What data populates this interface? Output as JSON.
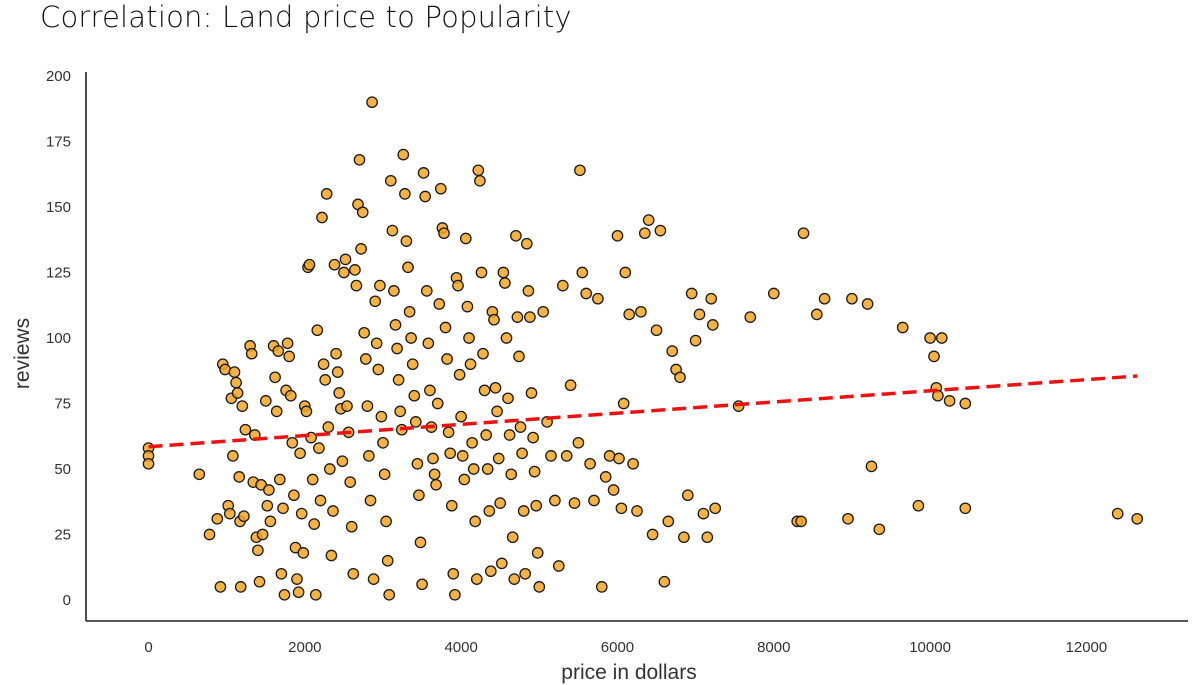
{
  "chart_data": {
    "type": "scatter",
    "title": "Correlation: Land price to Popularity",
    "xlabel": "price in dollars",
    "ylabel": "reviews",
    "xlim": [
      -800,
      13300
    ],
    "ylim": [
      -8,
      200
    ],
    "xticks": [
      0,
      2000,
      4000,
      6000,
      8000,
      10000,
      12000
    ],
    "yticks": [
      0,
      25,
      50,
      75,
      100,
      125,
      150,
      175,
      200
    ],
    "grid": false,
    "point_color": "#f5a623",
    "point_edge_color": "#1a1a1a",
    "trend_color": "#ee1111",
    "trend_line": {
      "style": "dashed",
      "x": [
        0,
        12650
      ],
      "y": [
        58.5,
        85.5
      ]
    },
    "points": [
      [
        0,
        58
      ],
      [
        0,
        55
      ],
      [
        0,
        52
      ],
      [
        650,
        48
      ],
      [
        780,
        25
      ],
      [
        880,
        31
      ],
      [
        920,
        5
      ],
      [
        950,
        90
      ],
      [
        980,
        88
      ],
      [
        1020,
        36
      ],
      [
        1040,
        33
      ],
      [
        1060,
        77
      ],
      [
        1080,
        55
      ],
      [
        1100,
        87
      ],
      [
        1120,
        83
      ],
      [
        1140,
        79
      ],
      [
        1160,
        47
      ],
      [
        1170,
        30
      ],
      [
        1180,
        5
      ],
      [
        1200,
        74
      ],
      [
        1220,
        32
      ],
      [
        1240,
        65
      ],
      [
        1300,
        97
      ],
      [
        1320,
        94
      ],
      [
        1340,
        45
      ],
      [
        1360,
        63
      ],
      [
        1380,
        24
      ],
      [
        1400,
        19
      ],
      [
        1420,
        7
      ],
      [
        1440,
        44
      ],
      [
        1460,
        25
      ],
      [
        1500,
        76
      ],
      [
        1520,
        36
      ],
      [
        1540,
        42
      ],
      [
        1560,
        30
      ],
      [
        1600,
        97
      ],
      [
        1620,
        85
      ],
      [
        1640,
        72
      ],
      [
        1660,
        95
      ],
      [
        1680,
        46
      ],
      [
        1700,
        10
      ],
      [
        1720,
        35
      ],
      [
        1740,
        2
      ],
      [
        1760,
        80
      ],
      [
        1780,
        98
      ],
      [
        1800,
        93
      ],
      [
        1820,
        78
      ],
      [
        1840,
        60
      ],
      [
        1860,
        40
      ],
      [
        1880,
        20
      ],
      [
        1900,
        8
      ],
      [
        1920,
        3
      ],
      [
        1940,
        56
      ],
      [
        1960,
        33
      ],
      [
        1980,
        18
      ],
      [
        2000,
        74
      ],
      [
        2020,
        72
      ],
      [
        2040,
        127
      ],
      [
        2060,
        128
      ],
      [
        2080,
        62
      ],
      [
        2100,
        46
      ],
      [
        2120,
        29
      ],
      [
        2140,
        2
      ],
      [
        2160,
        103
      ],
      [
        2180,
        58
      ],
      [
        2200,
        38
      ],
      [
        2220,
        146
      ],
      [
        2240,
        90
      ],
      [
        2260,
        84
      ],
      [
        2280,
        155
      ],
      [
        2300,
        66
      ],
      [
        2320,
        50
      ],
      [
        2340,
        17
      ],
      [
        2360,
        34
      ],
      [
        2380,
        128
      ],
      [
        2400,
        94
      ],
      [
        2420,
        87
      ],
      [
        2440,
        79
      ],
      [
        2460,
        73
      ],
      [
        2480,
        53
      ],
      [
        2500,
        125
      ],
      [
        2520,
        130
      ],
      [
        2540,
        74
      ],
      [
        2560,
        64
      ],
      [
        2580,
        45
      ],
      [
        2600,
        28
      ],
      [
        2620,
        10
      ],
      [
        2640,
        126
      ],
      [
        2660,
        120
      ],
      [
        2680,
        151
      ],
      [
        2700,
        168
      ],
      [
        2720,
        134
      ],
      [
        2740,
        148
      ],
      [
        2760,
        102
      ],
      [
        2780,
        92
      ],
      [
        2800,
        74
      ],
      [
        2820,
        55
      ],
      [
        2840,
        38
      ],
      [
        2860,
        190
      ],
      [
        2880,
        8
      ],
      [
        2900,
        114
      ],
      [
        2920,
        98
      ],
      [
        2940,
        88
      ],
      [
        2960,
        120
      ],
      [
        2980,
        70
      ],
      [
        3000,
        60
      ],
      [
        3020,
        48
      ],
      [
        3040,
        30
      ],
      [
        3060,
        15
      ],
      [
        3080,
        2
      ],
      [
        3100,
        160
      ],
      [
        3120,
        141
      ],
      [
        3140,
        118
      ],
      [
        3160,
        105
      ],
      [
        3180,
        96
      ],
      [
        3200,
        84
      ],
      [
        3220,
        72
      ],
      [
        3240,
        65
      ],
      [
        3260,
        170
      ],
      [
        3280,
        155
      ],
      [
        3300,
        137
      ],
      [
        3320,
        127
      ],
      [
        3340,
        110
      ],
      [
        3360,
        100
      ],
      [
        3380,
        90
      ],
      [
        3400,
        78
      ],
      [
        3420,
        68
      ],
      [
        3440,
        52
      ],
      [
        3460,
        40
      ],
      [
        3480,
        22
      ],
      [
        3500,
        6
      ],
      [
        3520,
        163
      ],
      [
        3540,
        154
      ],
      [
        3560,
        118
      ],
      [
        3580,
        98
      ],
      [
        3600,
        80
      ],
      [
        3620,
        66
      ],
      [
        3640,
        54
      ],
      [
        3660,
        48
      ],
      [
        3680,
        44
      ],
      [
        3700,
        75
      ],
      [
        3720,
        113
      ],
      [
        3740,
        157
      ],
      [
        3760,
        142
      ],
      [
        3780,
        140
      ],
      [
        3800,
        104
      ],
      [
        3820,
        92
      ],
      [
        3840,
        64
      ],
      [
        3860,
        56
      ],
      [
        3880,
        36
      ],
      [
        3900,
        10
      ],
      [
        3920,
        2
      ],
      [
        3940,
        123
      ],
      [
        3960,
        120
      ],
      [
        3980,
        86
      ],
      [
        4000,
        70
      ],
      [
        4020,
        55
      ],
      [
        4040,
        46
      ],
      [
        4060,
        138
      ],
      [
        4080,
        112
      ],
      [
        4100,
        100
      ],
      [
        4120,
        90
      ],
      [
        4140,
        60
      ],
      [
        4160,
        50
      ],
      [
        4180,
        30
      ],
      [
        4200,
        8
      ],
      [
        4220,
        164
      ],
      [
        4240,
        160
      ],
      [
        4260,
        125
      ],
      [
        4280,
        94
      ],
      [
        4300,
        80
      ],
      [
        4320,
        63
      ],
      [
        4340,
        50
      ],
      [
        4360,
        34
      ],
      [
        4380,
        11
      ],
      [
        4400,
        110
      ],
      [
        4420,
        107
      ],
      [
        4440,
        81
      ],
      [
        4460,
        72
      ],
      [
        4480,
        54
      ],
      [
        4500,
        37
      ],
      [
        4520,
        14
      ],
      [
        4540,
        125
      ],
      [
        4560,
        121
      ],
      [
        4580,
        100
      ],
      [
        4600,
        77
      ],
      [
        4620,
        63
      ],
      [
        4640,
        48
      ],
      [
        4660,
        24
      ],
      [
        4680,
        8
      ],
      [
        4700,
        139
      ],
      [
        4720,
        108
      ],
      [
        4740,
        93
      ],
      [
        4760,
        66
      ],
      [
        4780,
        56
      ],
      [
        4800,
        34
      ],
      [
        4820,
        10
      ],
      [
        4840,
        136
      ],
      [
        4860,
        118
      ],
      [
        4880,
        108
      ],
      [
        4900,
        79
      ],
      [
        4920,
        62
      ],
      [
        4940,
        49
      ],
      [
        4960,
        36
      ],
      [
        4980,
        18
      ],
      [
        5000,
        5
      ],
      [
        5050,
        110
      ],
      [
        5100,
        68
      ],
      [
        5150,
        55
      ],
      [
        5200,
        38
      ],
      [
        5250,
        13
      ],
      [
        5300,
        120
      ],
      [
        5350,
        55
      ],
      [
        5400,
        82
      ],
      [
        5450,
        37
      ],
      [
        5500,
        60
      ],
      [
        5520,
        164
      ],
      [
        5550,
        125
      ],
      [
        5600,
        117
      ],
      [
        5650,
        52
      ],
      [
        5700,
        38
      ],
      [
        5750,
        115
      ],
      [
        5800,
        5
      ],
      [
        5850,
        47
      ],
      [
        5900,
        55
      ],
      [
        5950,
        42
      ],
      [
        6000,
        139
      ],
      [
        6020,
        54
      ],
      [
        6050,
        35
      ],
      [
        6080,
        75
      ],
      [
        6100,
        125
      ],
      [
        6150,
        109
      ],
      [
        6200,
        52
      ],
      [
        6250,
        34
      ],
      [
        6300,
        110
      ],
      [
        6350,
        140
      ],
      [
        6400,
        145
      ],
      [
        6450,
        25
      ],
      [
        6500,
        103
      ],
      [
        6550,
        141
      ],
      [
        6600,
        7
      ],
      [
        6650,
        30
      ],
      [
        6700,
        95
      ],
      [
        6750,
        88
      ],
      [
        6800,
        85
      ],
      [
        6850,
        24
      ],
      [
        6900,
        40
      ],
      [
        6950,
        117
      ],
      [
        7000,
        99
      ],
      [
        7050,
        109
      ],
      [
        7100,
        33
      ],
      [
        7150,
        24
      ],
      [
        7200,
        115
      ],
      [
        7220,
        105
      ],
      [
        7250,
        35
      ],
      [
        7550,
        74
      ],
      [
        7700,
        108
      ],
      [
        8000,
        117
      ],
      [
        8300,
        30
      ],
      [
        8350,
        30
      ],
      [
        8380,
        140
      ],
      [
        8550,
        109
      ],
      [
        8650,
        115
      ],
      [
        8950,
        31
      ],
      [
        9000,
        115
      ],
      [
        9200,
        113
      ],
      [
        9250,
        51
      ],
      [
        9350,
        27
      ],
      [
        9650,
        104
      ],
      [
        9850,
        36
      ],
      [
        10000,
        100
      ],
      [
        10050,
        93
      ],
      [
        10080,
        81
      ],
      [
        10100,
        78
      ],
      [
        10150,
        100
      ],
      [
        10250,
        76
      ],
      [
        10450,
        75
      ],
      [
        10450,
        35
      ],
      [
        12400,
        33
      ],
      [
        12650,
        31
      ]
    ]
  }
}
